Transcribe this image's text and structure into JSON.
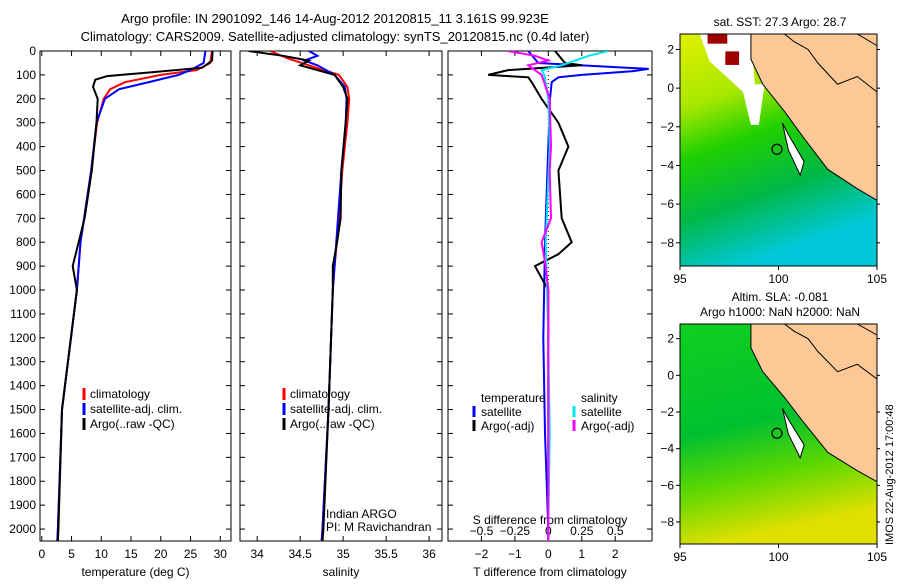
{
  "title_line1": "Argo profile: IN 2901092_146 14-Aug-2012 20120815_11 3.161S 99.923E",
  "title_line2": "Climatology: CARS2009. Satellite-adjusted climatology: synTS_20120815.nc (0.4d later)",
  "footer_stamp": "IMOS 22-Aug-2012 17:00:48",
  "colors": {
    "climatology": "#ff0000",
    "satellite": "#0000ff",
    "argo": "#000000",
    "s_satellite": "#00e5ee",
    "s_argo": "#ff00ff",
    "land": "#fcc896"
  },
  "chart_data": [
    {
      "id": "temperature",
      "type": "line",
      "xlabel": "temperature (deg C)",
      "ylabel": "depth",
      "xlim": [
        -0.3,
        31.8
      ],
      "ylim": [
        2050,
        0
      ],
      "xticks": [
        0,
        5,
        10,
        15,
        20,
        25,
        30
      ],
      "yticks": [
        0,
        100,
        200,
        300,
        400,
        500,
        600,
        700,
        800,
        900,
        1000,
        1100,
        1200,
        1300,
        1400,
        1500,
        1600,
        1700,
        1800,
        1900,
        2000
      ],
      "legend": [
        "climatology",
        "satellite-adj. clim.",
        "Argo(..raw -QC)"
      ],
      "series": [
        {
          "name": "climatology",
          "color": "#ff0000",
          "depth": [
            0,
            50,
            80,
            100,
            130,
            160,
            200,
            300,
            500,
            800,
            1000,
            1500,
            2000,
            2050
          ],
          "value": [
            28.6,
            28.3,
            26,
            20,
            14,
            11.5,
            10.4,
            9.3,
            8.3,
            6.5,
            5.9,
            3.4,
            2.7,
            2.6
          ]
        },
        {
          "name": "satellite-adj. clim.",
          "color": "#0000ff",
          "depth": [
            0,
            50,
            80,
            100,
            130,
            160,
            200,
            300,
            500,
            800,
            1000,
            1500,
            2000,
            2050
          ],
          "value": [
            27.5,
            27.2,
            25,
            23,
            18,
            13,
            10.6,
            9.2,
            8.3,
            6.5,
            5.9,
            3.4,
            2.7,
            2.6
          ]
        },
        {
          "name": "Argo(..raw -QC)",
          "color": "#000000",
          "depth": [
            0,
            40,
            70,
            90,
            105,
            120,
            150,
            200,
            300,
            500,
            700,
            900,
            1000,
            1500,
            2000,
            2050
          ],
          "value": [
            28.7,
            28.6,
            27,
            18,
            11,
            9,
            8.6,
            9.4,
            9.2,
            8.4,
            7.2,
            5.2,
            5.9,
            3.4,
            2.8,
            2.7
          ]
        }
      ]
    },
    {
      "id": "salinity",
      "type": "line",
      "xlabel": "salinity",
      "xlim": [
        33.8,
        36.15
      ],
      "ylim": [
        2050,
        0
      ],
      "xticks": [
        34,
        34.5,
        35,
        35.5,
        36
      ],
      "legend": [
        "climatology",
        "satellite-adj. clim.",
        "Argo(..raw -QC)"
      ],
      "annotation": [
        "Indian ARGO",
        "PI: M Ravichandran"
      ],
      "series": [
        {
          "name": "climatology",
          "color": "#ff0000",
          "depth": [
            0,
            30,
            60,
            100,
            150,
            200,
            300,
            500,
            700,
            900,
            1000,
            1500,
            2000,
            2050
          ],
          "value": [
            34.15,
            34.35,
            34.6,
            34.95,
            35.05,
            35.07,
            35.05,
            34.99,
            34.95,
            34.9,
            34.88,
            34.83,
            34.76,
            34.75
          ]
        },
        {
          "name": "satellite-adj. clim.",
          "color": "#0000ff",
          "depth": [
            0,
            20,
            40,
            60,
            100,
            150,
            200,
            300,
            500,
            700,
            900,
            1000,
            1500,
            2000,
            2050
          ],
          "value": [
            34.6,
            34.7,
            34.55,
            34.7,
            34.9,
            35.02,
            35.04,
            35.03,
            34.98,
            34.94,
            34.9,
            34.88,
            34.83,
            34.76,
            34.75
          ]
        },
        {
          "name": "Argo(..raw -QC)",
          "color": "#000000",
          "depth": [
            0,
            20,
            40,
            60,
            100,
            150,
            200,
            300,
            500,
            700,
            800,
            900,
            1000,
            1500,
            2000,
            2050
          ],
          "value": [
            33.9,
            34.3,
            34.6,
            34.5,
            34.9,
            35.0,
            35.05,
            35.03,
            34.98,
            34.97,
            34.93,
            34.88,
            34.88,
            34.83,
            34.77,
            34.76
          ]
        }
      ]
    },
    {
      "id": "difference",
      "type": "line",
      "xlabel": "T difference from climatology",
      "x2label": "S difference from climatology",
      "xlim": [
        -3,
        3.1
      ],
      "x2lim": [
        -0.75,
        0.775
      ],
      "ylim": [
        2050,
        0
      ],
      "xticks": [
        -2,
        -1,
        0,
        1,
        2
      ],
      "x2ticks": [
        -0.5,
        -0.25,
        0,
        0.25,
        0.5
      ],
      "legend_temperature": {
        "title": "temperature",
        "items": [
          "satellite",
          "Argo(-adj)"
        ]
      },
      "legend_salinity": {
        "title": "salinity",
        "items": [
          "satellite",
          "Argo(-adj)"
        ]
      },
      "series": [
        {
          "name": "T satellite",
          "color": "#0000ff",
          "depth": [
            0,
            50,
            75,
            85,
            100,
            110,
            130,
            200,
            400,
            800,
            1200,
            1600,
            2000,
            2050
          ],
          "value": [
            -0.6,
            -0.3,
            3.0,
            2.5,
            1.0,
            0.3,
            0.1,
            0.05,
            0,
            -0.1,
            -0.15,
            -0.1,
            0,
            0
          ]
        },
        {
          "name": "T Argo(-adj)",
          "color": "#000000",
          "depth": [
            0,
            50,
            60,
            80,
            100,
            110,
            130,
            200,
            300,
            400,
            500,
            700,
            800,
            850,
            900,
            950,
            1000,
            1200,
            2000,
            2050
          ],
          "value": [
            0.2,
            0.5,
            1.0,
            -1.2,
            -1.8,
            -0.6,
            -0.5,
            -0.2,
            0.3,
            0.6,
            0.3,
            0.4,
            0.7,
            0.3,
            -0.4,
            -0.2,
            0,
            0,
            0,
            0
          ]
        },
        {
          "name": "S satellite",
          "color": "#00e5ee",
          "depth": [
            0,
            20,
            40,
            60,
            80,
            100,
            200,
            400,
            800,
            1200,
            1600,
            2000,
            2050
          ],
          "value": [
            0.45,
            0.3,
            0.2,
            0.1,
            -0.05,
            -0.03,
            0,
            0.01,
            -0.02,
            0,
            0.01,
            0,
            0
          ]
        },
        {
          "name": "S Argo(-adj)",
          "color": "#ff00ff",
          "depth": [
            0,
            20,
            40,
            60,
            100,
            200,
            400,
            500,
            700,
            800,
            900,
            1000,
            2050
          ],
          "value": [
            -0.3,
            -0.1,
            0,
            -0.15,
            -0.05,
            0.01,
            0.02,
            0.01,
            0.02,
            -0.05,
            -0.02,
            0,
            0
          ]
        }
      ]
    },
    {
      "id": "map_sst",
      "type": "heatmap",
      "title": "sat. SST: 27.3 Argo: 28.7",
      "xlim": [
        95,
        105
      ],
      "ylim": [
        -9.2,
        2.8
      ],
      "xticks": [
        95,
        100,
        105
      ],
      "yticks": [
        2,
        0,
        -2,
        -4,
        -6,
        -8
      ],
      "argo_position": {
        "lon": 99.923,
        "lat": -3.161
      }
    },
    {
      "id": "map_sla",
      "type": "heatmap",
      "title": "Altim. SLA: -0.081",
      "subtitle": "Argo h1000: NaN h2000: NaN",
      "xlim": [
        95,
        105
      ],
      "ylim": [
        -9.2,
        2.8
      ],
      "xticks": [
        95,
        100,
        105
      ],
      "yticks": [
        2,
        0,
        -2,
        -4,
        -6,
        -8
      ],
      "argo_position": {
        "lon": 99.923,
        "lat": -3.161
      }
    }
  ]
}
